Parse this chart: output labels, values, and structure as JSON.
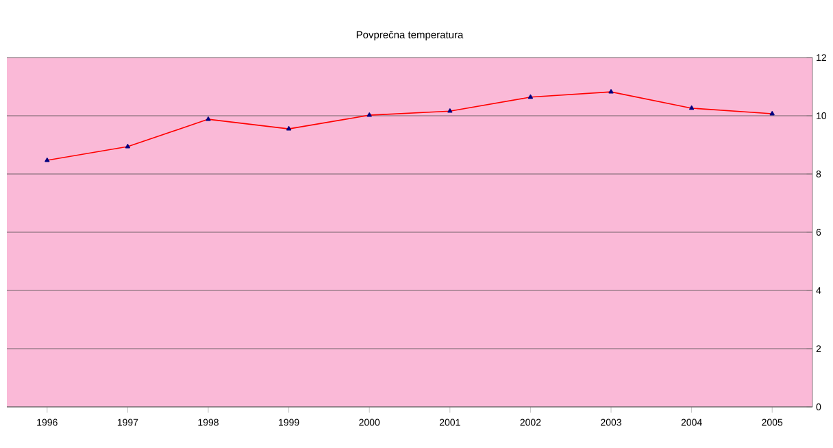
{
  "chart_data": {
    "type": "line",
    "title": "Povprečna temperatura",
    "categories": [
      "1996",
      "1997",
      "1998",
      "1999",
      "2000",
      "2001",
      "2002",
      "2003",
      "2004",
      "2005"
    ],
    "series": [
      {
        "color": "#ff0000",
        "values": [
          8.47,
          8.94,
          9.88,
          9.55,
          10.02,
          10.16,
          10.64,
          10.82,
          10.26,
          10.07
        ]
      }
    ],
    "ylim": [
      0,
      12
    ],
    "yticks": [
      0,
      2,
      4,
      6,
      8,
      10,
      12
    ],
    "grid": "y",
    "marker": "triangle",
    "line_style": "solid"
  }
}
